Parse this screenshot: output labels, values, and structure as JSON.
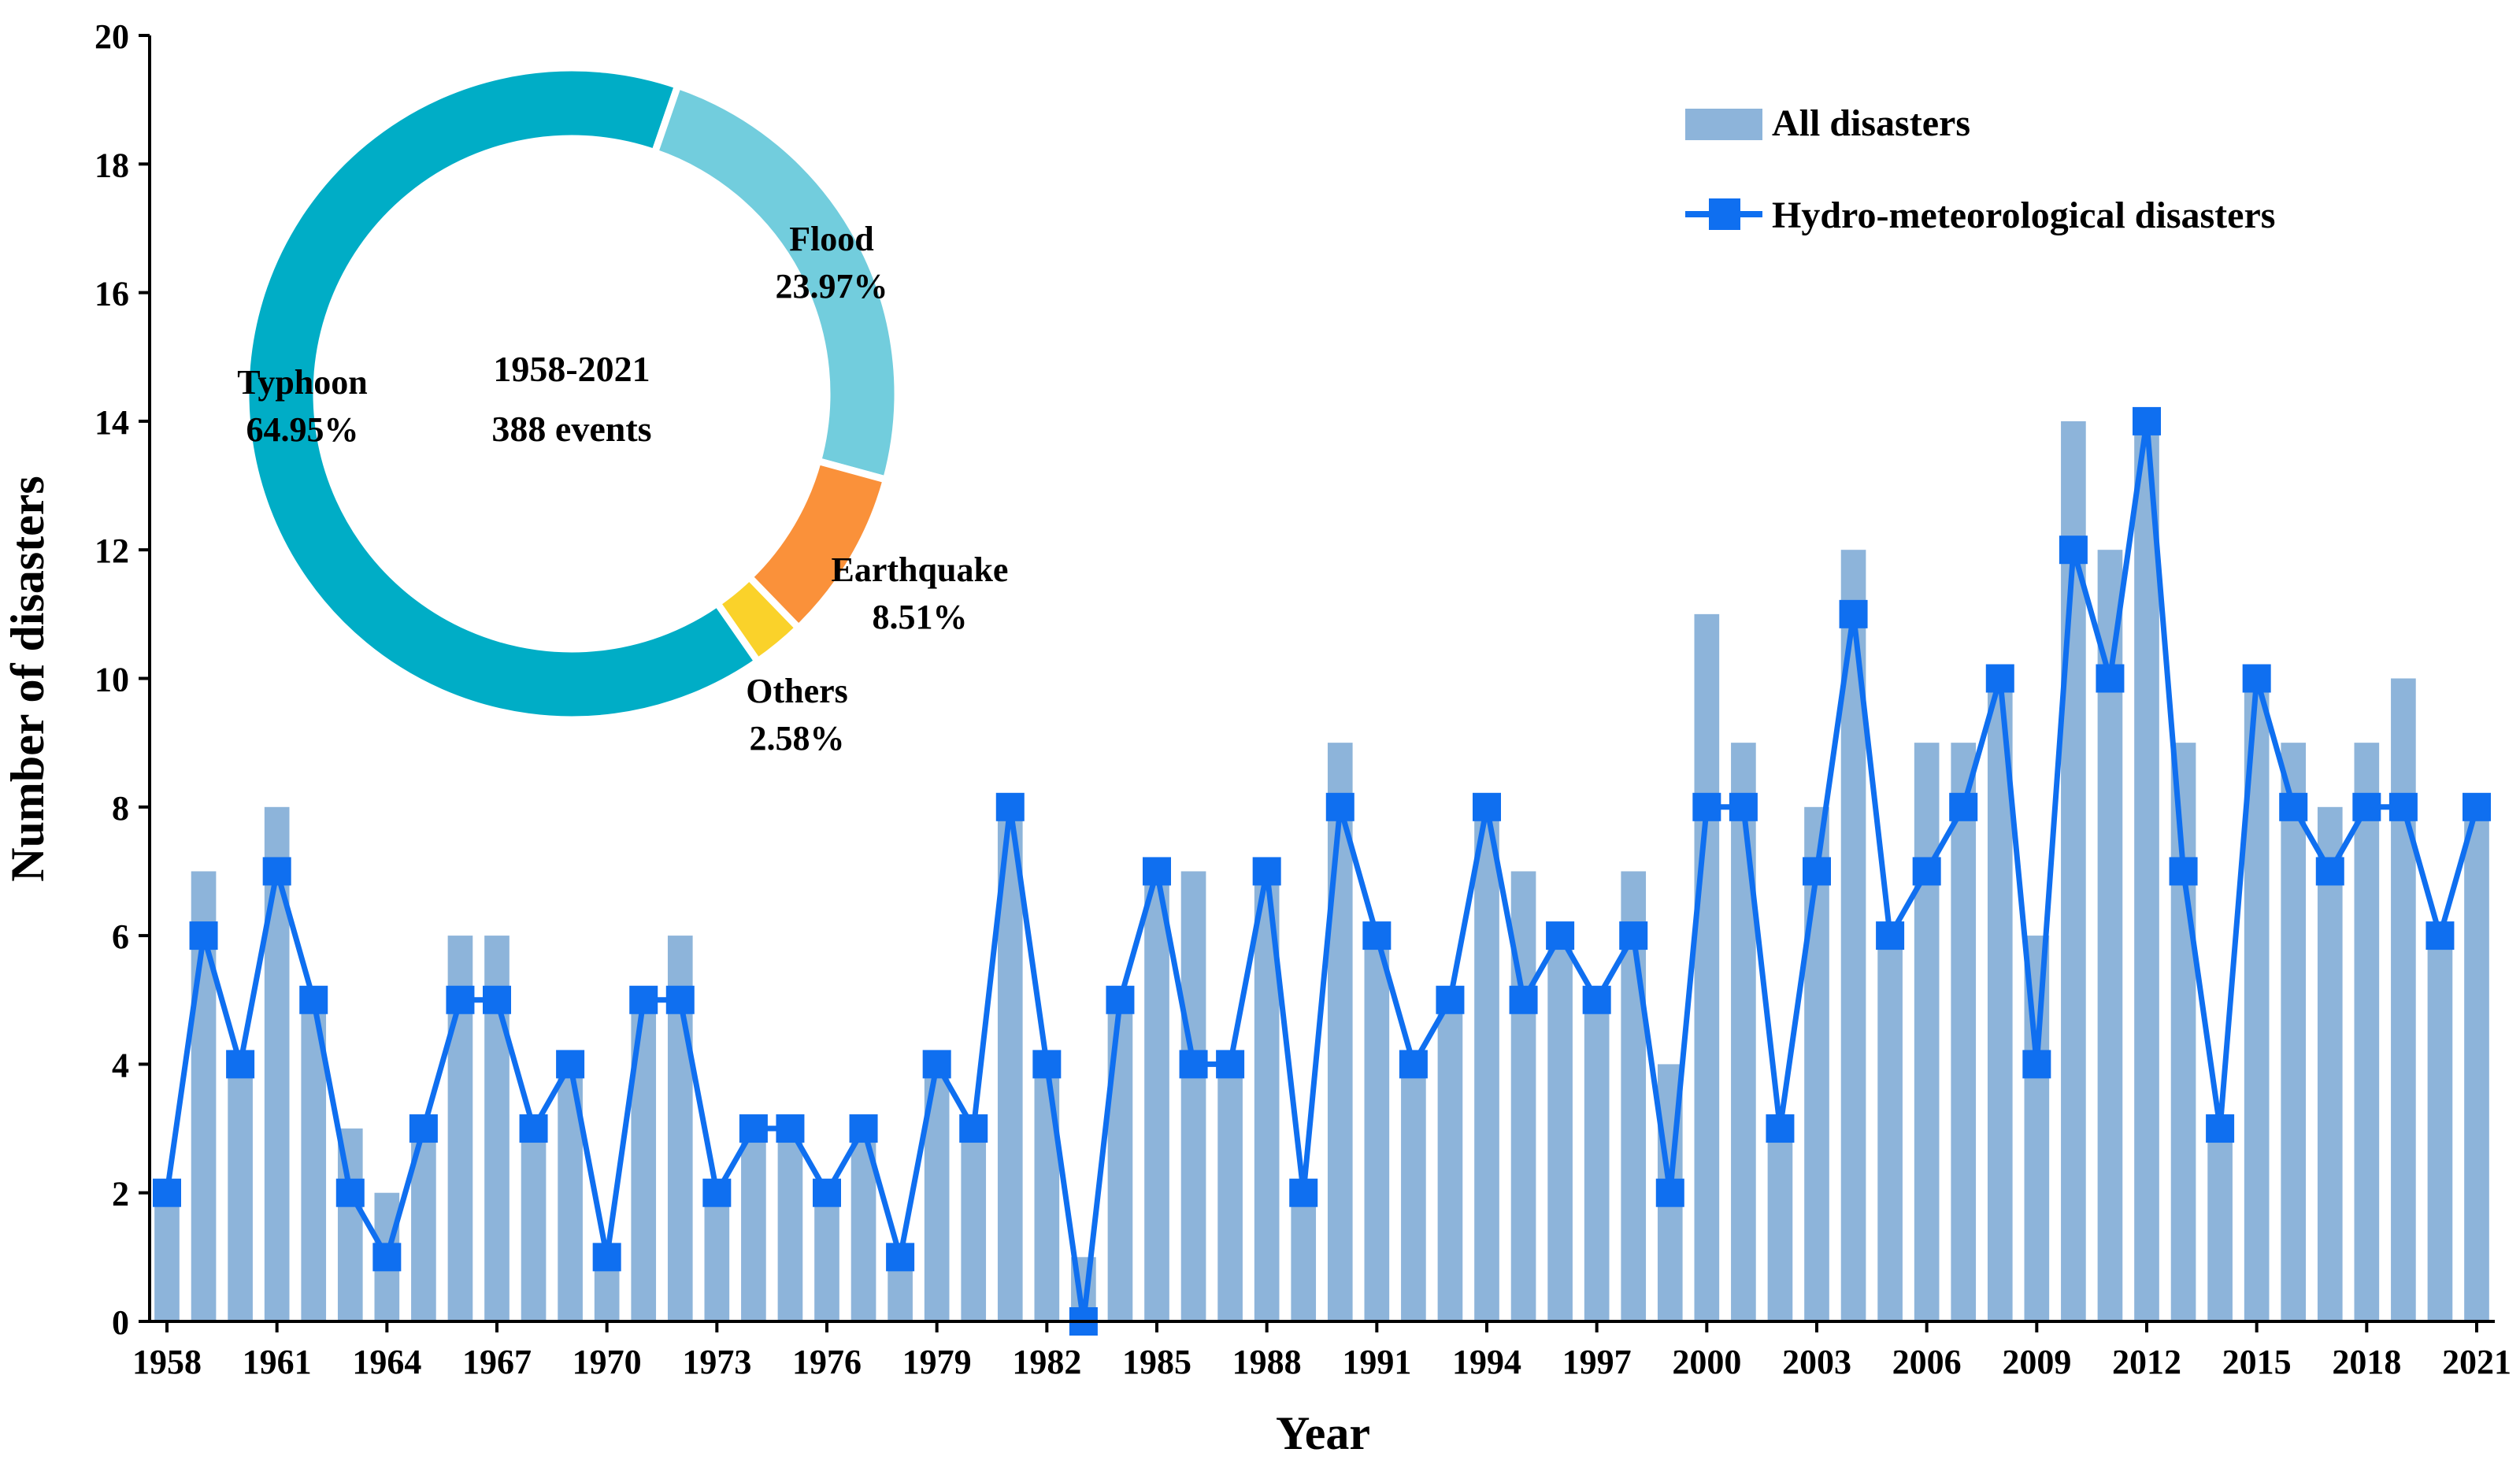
{
  "chart_data": [
    {
      "type": "bar+line",
      "title": "",
      "xlabel": "Year",
      "ylabel": "Number of disasters",
      "ylim": [
        0,
        20
      ],
      "ytick_step": 2,
      "grid": false,
      "legend_position": "top-right",
      "years": [
        1958,
        1959,
        1960,
        1961,
        1962,
        1963,
        1964,
        1965,
        1966,
        1967,
        1968,
        1969,
        1970,
        1971,
        1972,
        1973,
        1974,
        1975,
        1976,
        1977,
        1978,
        1979,
        1980,
        1981,
        1982,
        1983,
        1984,
        1985,
        1986,
        1987,
        1988,
        1989,
        1990,
        1991,
        1992,
        1993,
        1994,
        1995,
        1996,
        1997,
        1998,
        1999,
        2000,
        2001,
        2002,
        2003,
        2004,
        2005,
        2006,
        2007,
        2008,
        2009,
        2010,
        2011,
        2012,
        2013,
        2014,
        2015,
        2016,
        2017,
        2018,
        2019,
        2020,
        2021
      ],
      "xtick_labels": [
        "1958",
        "1961",
        "1964",
        "1967",
        "1970",
        "1973",
        "1976",
        "1979",
        "1982",
        "1985",
        "1988",
        "1991",
        "1994",
        "1997",
        "2000",
        "2003",
        "2006",
        "2009",
        "2012",
        "2015",
        "2018",
        "2021"
      ],
      "series": [
        {
          "name": "All disasters",
          "kind": "bar",
          "color": "#8DB4DA",
          "values": [
            2,
            7,
            4,
            8,
            5,
            3,
            2,
            3,
            6,
            6,
            3,
            4,
            1,
            5,
            6,
            2,
            3,
            3,
            2,
            3,
            1,
            4,
            3,
            8,
            4,
            1,
            5,
            7,
            7,
            4,
            7,
            2,
            9,
            6,
            4,
            5,
            8,
            7,
            6,
            5,
            7,
            4,
            11,
            9,
            3,
            8,
            12,
            6,
            9,
            9,
            10,
            6,
            14,
            12,
            14,
            9,
            3,
            10,
            9,
            8,
            9,
            10,
            6,
            8
          ]
        },
        {
          "name": "Hydro-meteorological disasters",
          "kind": "line",
          "marker": "square",
          "color": "#0F6FF0",
          "values": [
            2,
            6,
            4,
            7,
            5,
            2,
            1,
            3,
            5,
            5,
            3,
            4,
            1,
            5,
            5,
            2,
            3,
            3,
            2,
            3,
            1,
            4,
            3,
            8,
            4,
            0,
            5,
            7,
            4,
            4,
            7,
            2,
            8,
            6,
            4,
            5,
            8,
            5,
            6,
            5,
            6,
            2,
            8,
            8,
            3,
            7,
            11,
            6,
            7,
            8,
            10,
            4,
            12,
            10,
            14,
            7,
            3,
            10,
            8,
            7,
            8,
            8,
            6,
            8
          ]
        }
      ]
    },
    {
      "type": "pie",
      "style": "donut",
      "center_text": [
        "1958-2021",
        "388 events"
      ],
      "slices": [
        {
          "label": "Typhoon",
          "value": 64.95,
          "value_label": "64.95%",
          "color": "#00ADC6"
        },
        {
          "label": "Flood",
          "value": 23.97,
          "value_label": "23.97%",
          "color": "#72CDDD"
        },
        {
          "label": "Earthquake",
          "value": 8.51,
          "value_label": "8.51%",
          "color": "#FA913A"
        },
        {
          "label": "Others",
          "value": 2.58,
          "value_label": "2.58%",
          "color": "#FAD22A"
        }
      ]
    }
  ]
}
